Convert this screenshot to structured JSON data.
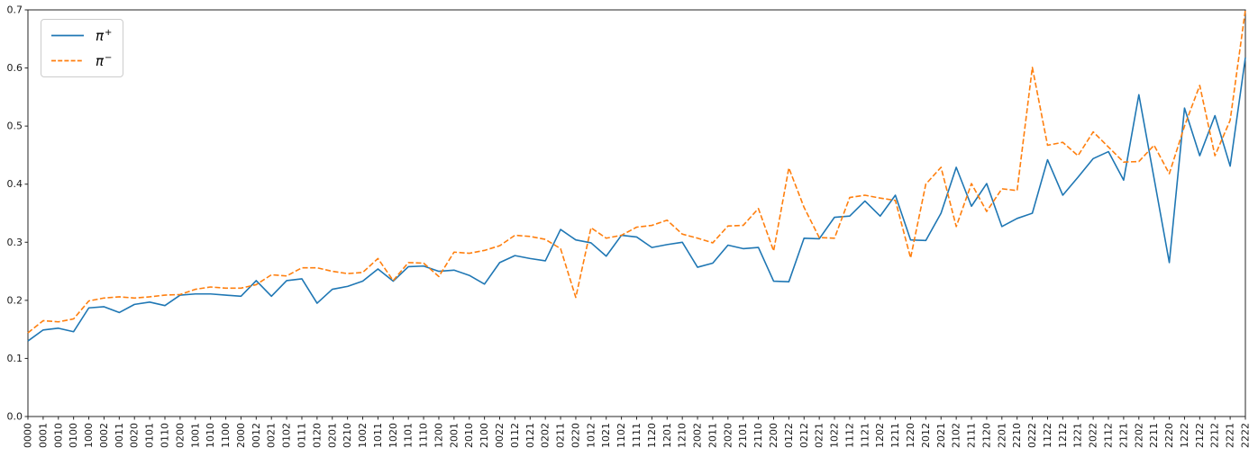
{
  "figure": {
    "background": "#ffffff",
    "axes_color": "#262626",
    "tick_label_color": "#1a1a1a"
  },
  "legend": {
    "items": [
      {
        "base": "π",
        "sup": "+"
      },
      {
        "base": "π",
        "sup": "−"
      }
    ]
  },
  "chart_data": {
    "type": "line",
    "title": "",
    "xlabel": "",
    "ylabel": "",
    "ylim": [
      0.0,
      0.7
    ],
    "yticks": [
      0.0,
      0.1,
      0.2,
      0.3,
      0.4,
      0.5,
      0.6,
      0.7
    ],
    "ytick_labels": [
      "0.0",
      "0.1",
      "0.2",
      "0.3",
      "0.4",
      "0.5",
      "0.6",
      "0.7"
    ],
    "xtick_rotation": 90,
    "grid": false,
    "legend_position": "upper-left",
    "categories": [
      "0000",
      "0001",
      "0010",
      "0100",
      "1000",
      "0002",
      "0011",
      "0020",
      "0101",
      "0110",
      "0200",
      "1001",
      "1010",
      "1100",
      "2000",
      "0012",
      "0021",
      "0102",
      "0111",
      "0120",
      "0201",
      "0210",
      "1002",
      "1011",
      "1020",
      "1101",
      "1110",
      "1200",
      "2001",
      "2010",
      "2100",
      "0022",
      "0112",
      "0121",
      "0202",
      "0211",
      "0220",
      "1012",
      "1021",
      "1102",
      "1111",
      "1120",
      "1201",
      "1210",
      "2002",
      "2011",
      "2020",
      "2101",
      "2110",
      "2200",
      "0122",
      "0212",
      "0221",
      "1022",
      "1112",
      "1121",
      "1202",
      "1211",
      "1220",
      "2012",
      "2021",
      "2102",
      "2111",
      "2120",
      "2201",
      "2210",
      "0222",
      "1122",
      "1212",
      "1221",
      "2022",
      "2112",
      "2121",
      "2202",
      "2211",
      "2220",
      "1222",
      "2122",
      "2212",
      "2221",
      "2222"
    ],
    "series": [
      {
        "name": "π+",
        "color": "#1f77b4",
        "linestyle": "solid",
        "values": [
          0.13,
          0.149,
          0.152,
          0.146,
          0.187,
          0.189,
          0.179,
          0.193,
          0.197,
          0.191,
          0.209,
          0.211,
          0.211,
          0.209,
          0.207,
          0.234,
          0.207,
          0.234,
          0.237,
          0.195,
          0.219,
          0.224,
          0.233,
          0.254,
          0.233,
          0.258,
          0.259,
          0.25,
          0.252,
          0.243,
          0.228,
          0.265,
          0.277,
          0.272,
          0.268,
          0.322,
          0.304,
          0.299,
          0.276,
          0.312,
          0.309,
          0.291,
          0.296,
          0.3,
          0.257,
          0.264,
          0.295,
          0.289,
          0.291,
          0.233,
          0.232,
          0.307,
          0.306,
          0.343,
          0.345,
          0.371,
          0.345,
          0.381,
          0.304,
          0.303,
          0.35,
          0.429,
          0.362,
          0.401,
          0.327,
          0.341,
          0.35,
          0.442,
          0.381,
          0.412,
          0.444,
          0.456,
          0.407,
          0.554,
          0.41,
          0.265,
          0.531,
          0.449,
          0.518,
          0.431,
          0.618
        ]
      },
      {
        "name": "π−",
        "color": "#ff7f0e",
        "linestyle": "dashed",
        "values": [
          0.144,
          0.165,
          0.163,
          0.168,
          0.199,
          0.204,
          0.206,
          0.204,
          0.206,
          0.209,
          0.21,
          0.219,
          0.223,
          0.221,
          0.221,
          0.227,
          0.244,
          0.242,
          0.256,
          0.256,
          0.25,
          0.246,
          0.248,
          0.272,
          0.234,
          0.265,
          0.264,
          0.241,
          0.283,
          0.281,
          0.286,
          0.294,
          0.312,
          0.31,
          0.305,
          0.289,
          0.205,
          0.325,
          0.307,
          0.312,
          0.326,
          0.329,
          0.338,
          0.314,
          0.307,
          0.299,
          0.328,
          0.329,
          0.358,
          0.285,
          0.428,
          0.36,
          0.308,
          0.307,
          0.377,
          0.381,
          0.376,
          0.372,
          0.273,
          0.4,
          0.429,
          0.327,
          0.401,
          0.353,
          0.392,
          0.389,
          0.601,
          0.467,
          0.472,
          0.449,
          0.49,
          0.464,
          0.438,
          0.439,
          0.467,
          0.418,
          0.5,
          0.57,
          0.449,
          0.51,
          0.7
        ]
      }
    ]
  }
}
